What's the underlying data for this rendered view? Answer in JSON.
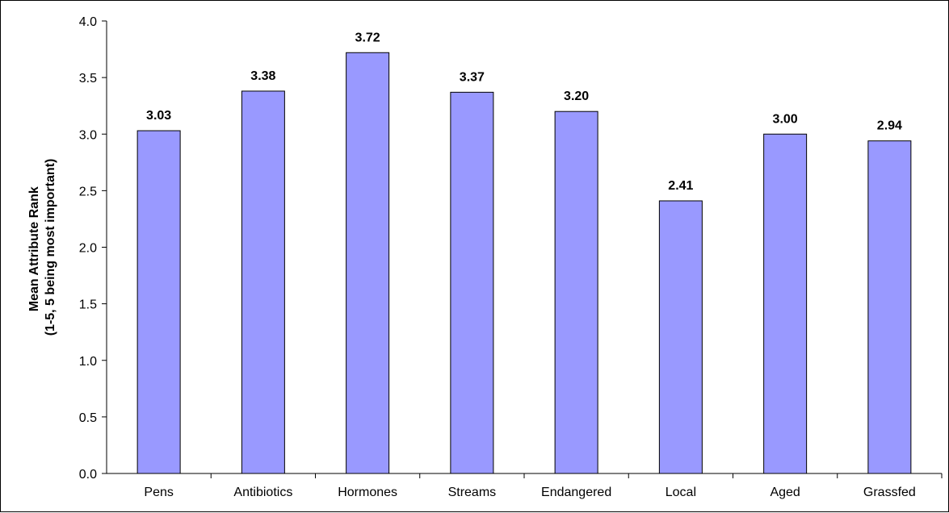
{
  "chart_data": {
    "type": "bar",
    "title": "",
    "xlabel": "",
    "ylabel": "Mean Attribute Rank",
    "ylabel_line2": "(1-5, 5 being most important)",
    "categories": [
      "Pens",
      "Antibiotics",
      "Hormones",
      "Streams",
      "Endangered",
      "Local",
      "Aged",
      "Grassfed"
    ],
    "values": [
      3.03,
      3.38,
      3.72,
      3.37,
      3.2,
      2.41,
      3.0,
      2.94
    ],
    "data_labels": [
      "3.03",
      "3.38",
      "3.72",
      "3.37",
      "3.20",
      "2.41",
      "3.00",
      "2.94"
    ],
    "ylim": [
      0,
      4.0
    ],
    "yticks": [
      0.0,
      0.5,
      1.0,
      1.5,
      2.0,
      2.5,
      3.0,
      3.5,
      4.0
    ],
    "ytick_labels": [
      "0.0",
      "0.5",
      "1.0",
      "1.5",
      "2.0",
      "2.5",
      "3.0",
      "3.5",
      "4.0"
    ],
    "grid": false,
    "legend": "none",
    "bar_color": "#9999ff",
    "bar_edge_color": "#000000"
  }
}
